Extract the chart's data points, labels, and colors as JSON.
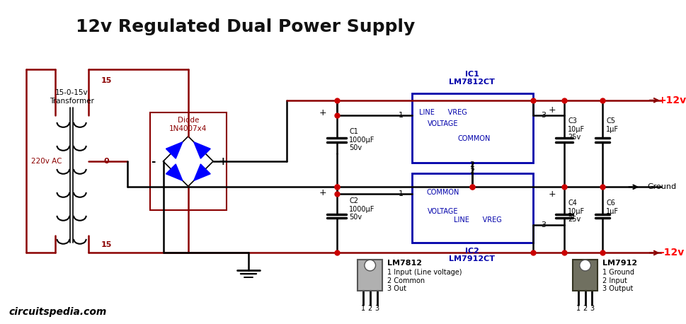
{
  "title": "12v Regulated Dual Power Supply",
  "title_fontsize": 18,
  "title_color": "#111111",
  "bg_color": "#ffffff",
  "wire_color_dark": "#8B0000",
  "wire_color_black": "#000000",
  "wire_color_blue": "#0000AA",
  "dot_color": "#CC0000",
  "label_220v": "220v AC",
  "label_transformer": "15-0-15v\nTransformer",
  "label_15a": "15",
  "label_15b": "15",
  "label_0": "0",
  "label_diode": "Diode\n1N4007x4",
  "label_minus": "-",
  "label_plus": "+",
  "label_c1": "C1\n1000μF\n50v",
  "label_c2": "C2\n1000μF\n50v",
  "label_c3": "C3\n+ 10μF\n25v",
  "label_c4": "C4\n+ 10μF\n25v",
  "label_c5": "C5\n1μF",
  "label_c6": "C6\n1μF",
  "label_ic1": "IC1\nLM7812CT",
  "label_ic2": "IC2\nLM7912CT",
  "label_plus12v": "+12v",
  "label_minus12v": "-12v",
  "label_ground": "Ground",
  "label_website": "circuitspedia.com",
  "ic1_text_line": "LINE      VREG",
  "ic1_text_voltage": "VOLTAGE",
  "ic1_text_common": "COMMON",
  "ic2_text_common": "COMMON",
  "ic2_text_voltage": "VOLTAGE",
  "ic2_text_line": "LINE      VREG",
  "lm7812_label": "LM7812",
  "lm7812_pin1": "1 Input (Line voltage)",
  "lm7812_pin2": "2 Common",
  "lm7812_pin3": "3 Out",
  "lm7812_pins": "1 2 3",
  "lm7912_label": "LM7912",
  "lm7912_pin1": "1 Ground",
  "lm7912_pin2": "2 Input",
  "lm7912_pin3": "3 Output",
  "lm7912_pins": "1 2 3"
}
